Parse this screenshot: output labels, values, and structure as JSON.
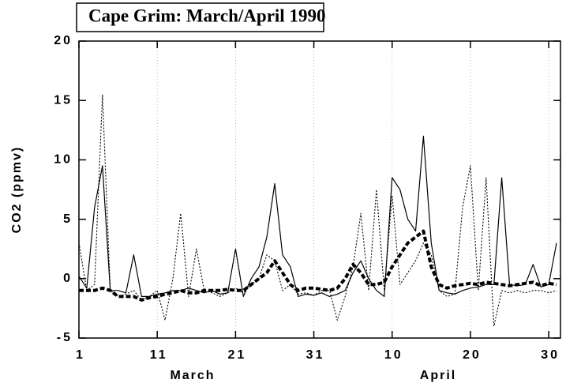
{
  "chart_data": {
    "type": "line",
    "title": "Cape Grim: March/April 1990",
    "y_label": "CO2  (ppmv)",
    "month_labels": [
      "March",
      "April"
    ],
    "x": [
      1,
      2,
      3,
      4,
      5,
      6,
      7,
      8,
      9,
      10,
      11,
      12,
      13,
      14,
      15,
      16,
      17,
      18,
      19,
      20,
      21,
      22,
      23,
      24,
      25,
      26,
      27,
      28,
      29,
      30,
      31,
      32,
      33,
      34,
      35,
      36,
      37,
      38,
      39,
      40,
      41,
      42,
      43,
      44,
      45,
      46,
      47,
      48,
      49,
      50,
      51,
      52,
      53,
      54,
      55,
      56,
      57,
      58,
      59,
      60,
      61,
      62
    ],
    "xlim": [
      1,
      62.5
    ],
    "xticks": [
      1,
      11,
      21,
      31,
      {
        "value": 41,
        "label": "10"
      },
      {
        "value": 51,
        "label": "20"
      },
      {
        "value": 61,
        "label": "30"
      }
    ],
    "ylim": [
      -5,
      20
    ],
    "yticks": [
      -5,
      0,
      5,
      10,
      15,
      20
    ],
    "grid": true,
    "series": [
      {
        "color": "#000000",
        "style": "solid",
        "values": [
          0.2,
          -0.8,
          6,
          9.5,
          -1,
          -1,
          -1.2,
          2,
          -1.5,
          -1.5,
          -1.3,
          -1.2,
          -1,
          -1,
          -0.8,
          -1,
          -1.2,
          -1,
          -1.3,
          -1.2,
          2.5,
          -1.5,
          0,
          1,
          3.5,
          8,
          2,
          1,
          -1.5,
          -1.3,
          -1.4,
          -1.2,
          -1.5,
          -1.3,
          -1,
          0.5,
          1.5,
          0,
          -1,
          -1.5,
          8.5,
          7.5,
          5,
          4,
          12,
          3,
          -1,
          -1.2,
          -1.3,
          -1,
          -0.8,
          -0.7,
          -0.5,
          -0.5,
          8.5,
          -0.5,
          -0.6,
          -0.5,
          1.2,
          -0.7,
          -0.5,
          3
        ]
      },
      {
        "color": "#000000",
        "style": "dotted",
        "values": [
          3,
          -1,
          -0.5,
          15.5,
          -1,
          -1.5,
          -1.3,
          -1,
          -1.8,
          -1.5,
          -1,
          -3.5,
          0,
          5.5,
          -1.5,
          2.5,
          -1,
          -1.2,
          -1.5,
          -1.2,
          -0.8,
          -1.2,
          -0.5,
          0,
          2,
          1.5,
          -1,
          -0.5,
          -1.3,
          -1.2,
          -1.4,
          -1,
          -1,
          -3.5,
          -1.5,
          1,
          5.5,
          -1,
          7.5,
          -1,
          7,
          -0.5,
          0.5,
          1.5,
          3,
          2,
          -1,
          -1.5,
          -1.3,
          6,
          9.5,
          -1,
          8.5,
          -4,
          -1,
          -1.2,
          -1,
          -1.2,
          -1,
          -1,
          -1.2,
          -1
        ]
      },
      {
        "color": "#000000",
        "style": "dashed",
        "values": [
          -1,
          -1,
          -1,
          -0.8,
          -1,
          -1.5,
          -1.5,
          -1.5,
          -1.8,
          -1.6,
          -1.5,
          -1.3,
          -1.2,
          -1,
          -1.2,
          -1.2,
          -1,
          -1,
          -1,
          -0.9,
          -1,
          -1,
          -0.5,
          0,
          0.5,
          1.5,
          0.5,
          -0.5,
          -1,
          -0.8,
          -0.8,
          -0.9,
          -1,
          -0.8,
          0,
          1.2,
          0.5,
          -0.5,
          -0.5,
          -0.3,
          1,
          2,
          3,
          3.5,
          4,
          1,
          -0.5,
          -0.8,
          -0.6,
          -0.5,
          -0.4,
          -0.5,
          -0.3,
          -0.4,
          -0.5,
          -0.6,
          -0.5,
          -0.4,
          -0.3,
          -0.6,
          -0.4,
          -0.5
        ]
      }
    ]
  }
}
